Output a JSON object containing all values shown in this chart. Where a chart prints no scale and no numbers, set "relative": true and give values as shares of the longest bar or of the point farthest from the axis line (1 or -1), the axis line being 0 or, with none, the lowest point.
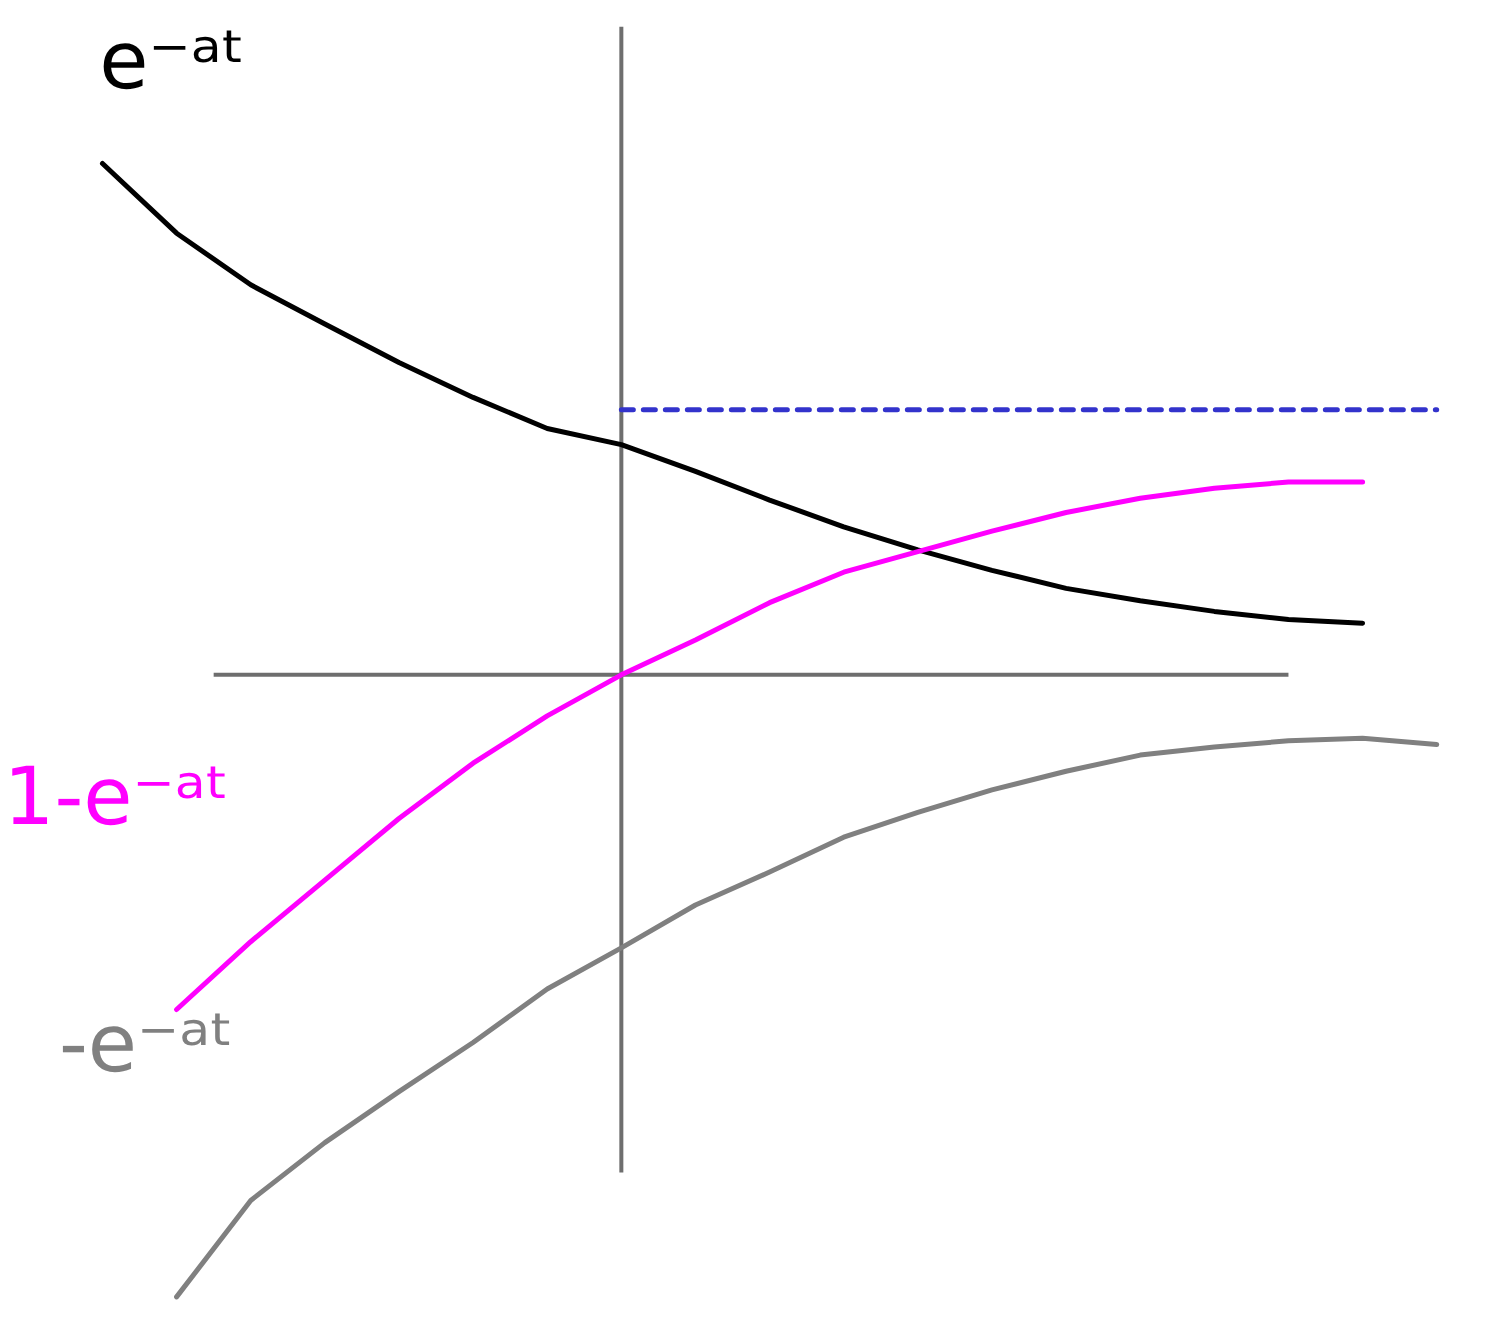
{
  "chart_data": {
    "type": "line",
    "relative": true,
    "tick_labels": false,
    "line_style": "solid",
    "categories": [
      null,
      null,
      null,
      null,
      null,
      null,
      null,
      null,
      null,
      null,
      null,
      null,
      null,
      null,
      null,
      null,
      null,
      null,
      null
    ],
    "series": [
      {
        "name": "e⁻ᵃᵗ",
        "color": "#000000",
        "values": [
          0.822,
          0.71,
          0.627,
          0.564,
          0.502,
          0.446,
          0.396,
          0.37,
          0.327,
          0.281,
          0.238,
          0.201,
          0.168,
          0.139,
          0.119,
          0.102,
          0.089,
          0.083,
          null
        ]
      },
      {
        "name": "1-e⁻ᵃᵗ",
        "color": "#ff00ff",
        "values": [
          null,
          -0.538,
          -0.429,
          -0.33,
          -0.231,
          -0.142,
          -0.066,
          0,
          0.056,
          0.116,
          0.165,
          0.198,
          0.231,
          0.261,
          0.284,
          0.3,
          0.31,
          0.31,
          null
        ]
      },
      {
        "name": "-e⁻ᵃᵗ",
        "color": "#808080",
        "values": [
          null,
          -1,
          -0.845,
          -0.752,
          -0.67,
          -0.591,
          -0.505,
          -0.439,
          -0.37,
          -0.317,
          -0.261,
          -0.221,
          -0.185,
          -0.155,
          -0.129,
          -0.116,
          -0.106,
          -0.102,
          -0.112
        ]
      },
      {
        "color": "#3333cc",
        "line_style": "dashed",
        "values": [
          null,
          null,
          null,
          null,
          null,
          null,
          null,
          0.426,
          0.426,
          0.426,
          0.426,
          0.426,
          0.426,
          0.426,
          0.426,
          0.426,
          0.426,
          0.426,
          0.426
        ]
      }
    ]
  }
}
